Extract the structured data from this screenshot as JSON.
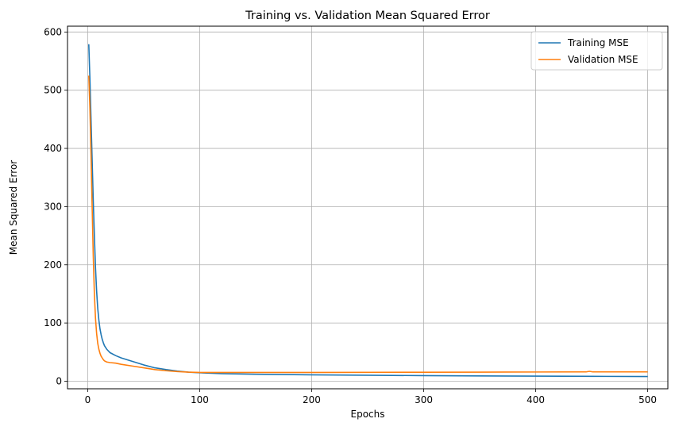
{
  "chart_data": {
    "type": "line",
    "title": "Training vs. Validation Mean Squared Error",
    "xlabel": "Epochs",
    "ylabel": "Mean Squared Error",
    "xlim": [
      -18,
      518
    ],
    "ylim": [
      -13,
      610
    ],
    "xticks": [
      0,
      100,
      200,
      300,
      400,
      500
    ],
    "yticks": [
      0,
      100,
      200,
      300,
      400,
      500,
      600
    ],
    "grid": true,
    "legend_position": "top-right",
    "series": [
      {
        "name": "Training MSE",
        "color": "#1f77b4",
        "x": [
          1,
          2,
          3,
          4,
          5,
          6,
          7,
          8,
          9,
          10,
          11,
          12,
          13,
          14,
          15,
          17,
          20,
          25,
          30,
          40,
          50,
          60,
          70,
          80,
          90,
          100,
          120,
          150,
          200,
          250,
          300,
          350,
          400,
          450,
          500
        ],
        "y": [
          579,
          520,
          450,
          380,
          310,
          250,
          195,
          155,
          125,
          105,
          90,
          80,
          72,
          66,
          61,
          55,
          49,
          44,
          40,
          34,
          28,
          23,
          20,
          17.5,
          15.5,
          14.5,
          13,
          12,
          11,
          10.2,
          9.6,
          9.1,
          8.7,
          8.4,
          8
        ]
      },
      {
        "name": "Validation MSE",
        "color": "#ff7f0e",
        "x": [
          1,
          2,
          3,
          4,
          5,
          6,
          7,
          8,
          9,
          10,
          11,
          12,
          13,
          14,
          15,
          17,
          20,
          25,
          30,
          40,
          50,
          60,
          70,
          80,
          90,
          100,
          120,
          150,
          200,
          250,
          300,
          350,
          400,
          445,
          448,
          451,
          500
        ],
        "y": [
          525,
          470,
          390,
          300,
          215,
          150,
          108,
          82,
          65,
          55,
          48,
          43,
          40,
          37,
          35,
          33,
          32,
          31,
          29,
          26,
          23,
          20,
          18,
          16.5,
          15.5,
          15,
          15,
          15,
          15,
          15.2,
          15.4,
          15.6,
          15.8,
          16,
          17,
          16,
          16
        ]
      }
    ]
  }
}
